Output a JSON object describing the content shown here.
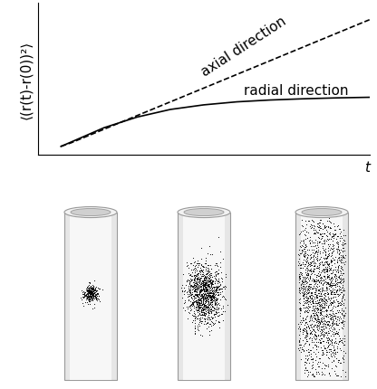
{
  "chart_data": {
    "type": "line",
    "x_label": "t",
    "y_label": "⟨(r(t)-r(0))²⟩",
    "x": [
      0.7,
      1,
      2,
      3,
      4,
      5,
      6,
      7,
      8,
      9,
      10
    ],
    "xlim": [
      0,
      10
    ],
    "ylim": [
      0,
      10
    ],
    "tick_labels": false,
    "grid": false,
    "series": [
      {
        "name": "axial direction",
        "color": "#000000",
        "line_style": "dashed",
        "values": [
          0.57,
          0.8,
          1.7,
          2.6,
          3.5,
          4.4,
          5.3,
          6.2,
          7.1,
          8.0,
          8.9
        ]
      },
      {
        "name": "radial direction",
        "color": "#000000",
        "line_style": "solid",
        "values": [
          0.57,
          0.85,
          1.8,
          2.5,
          3.0,
          3.3,
          3.5,
          3.62,
          3.7,
          3.76,
          3.8
        ]
      }
    ]
  }
}
